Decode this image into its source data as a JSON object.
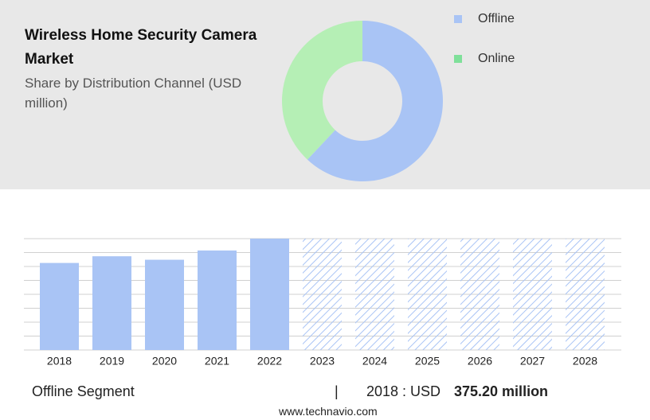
{
  "chart_data": [
    {
      "type": "pie",
      "title": "Wireless Home Security Camera Market",
      "subtitle": "Share by Distribution Channel (USD million)",
      "categories": [
        "Offline",
        "Online"
      ],
      "values": [
        62,
        38
      ],
      "colors": [
        "#a9c4f5",
        "#b5efb5"
      ],
      "legend_colors": [
        "#a9c4f5",
        "#7fe09a"
      ],
      "donut": true
    },
    {
      "type": "bar",
      "categories": [
        "2018",
        "2019",
        "2020",
        "2021",
        "2022",
        "2023",
        "2024",
        "2025",
        "2026",
        "2027",
        "2028"
      ],
      "values": [
        375.2,
        404,
        389,
        429,
        480,
        null,
        null,
        null,
        null,
        null,
        null
      ],
      "color": "#a9c4f5",
      "ylim": [
        0,
        480
      ],
      "yticks": [
        0,
        60,
        120,
        180,
        240,
        300,
        360,
        420,
        480
      ],
      "grid": true
    }
  ],
  "footer": {
    "segment": "Offline Segment",
    "separator": "|",
    "year_text": "2018 : USD",
    "value_label": "375.20 million",
    "source": "www.technavio.com"
  }
}
